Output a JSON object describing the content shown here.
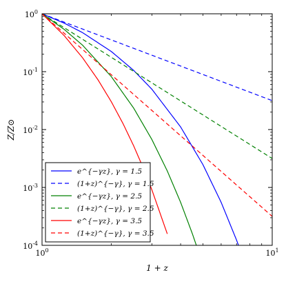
{
  "chart_data": {
    "type": "line",
    "xlabel": "1 + z",
    "ylabel": "Z/Z⊙",
    "x_scale": "log",
    "y_scale": "log",
    "xlim": [
      1,
      10
    ],
    "ylim": [
      0.0001,
      1
    ],
    "x_ticks": [
      {
        "value": 1,
        "base": "10",
        "exp": "0"
      },
      {
        "value": 10,
        "base": "10",
        "exp": "1"
      }
    ],
    "y_ticks": [
      {
        "value": 1,
        "base": "10",
        "exp": "0"
      },
      {
        "value": 0.1,
        "base": "10",
        "exp": "-1"
      },
      {
        "value": 0.01,
        "base": "10",
        "exp": "-2"
      },
      {
        "value": 0.001,
        "base": "10",
        "exp": "-3"
      },
      {
        "value": 0.0001,
        "base": "10",
        "exp": "-4"
      }
    ],
    "grid": false,
    "legend_position": "lower-left",
    "series": [
      {
        "name": "e^{−γz}, γ = 1.5",
        "color": "#0000ff",
        "dash": "solid",
        "x": [
          1,
          1.25,
          1.5,
          2,
          2.5,
          3,
          4,
          5,
          6,
          7,
          7.2
        ],
        "y": [
          1,
          0.6873,
          0.4724,
          0.2231,
          0.1054,
          0.0498,
          0.0111,
          0.00248,
          0.000553,
          0.000123,
          9.07e-05
        ]
      },
      {
        "name": "(1+z)^{−γ}, γ = 1.5",
        "color": "#0000ff",
        "dash": "dashed",
        "x": [
          1,
          2,
          4,
          10
        ],
        "y": [
          1,
          0.3536,
          0.125,
          0.03162
        ]
      },
      {
        "name": "e^{−γz}, γ = 2.5",
        "color": "#008000",
        "dash": "solid",
        "x": [
          1,
          1.25,
          1.5,
          2,
          2.5,
          3,
          3.5,
          4,
          4.5,
          4.8
        ],
        "y": [
          1,
          0.5353,
          0.2865,
          0.0821,
          0.02352,
          0.006738,
          0.00193,
          0.000553,
          0.000158,
          7.49e-05
        ]
      },
      {
        "name": "(1+z)^{−γ}, γ = 2.5",
        "color": "#008000",
        "dash": "dashed",
        "x": [
          1,
          2,
          4,
          10
        ],
        "y": [
          1,
          0.1768,
          0.03125,
          0.003162
        ]
      },
      {
        "name": "e^{−γz}, γ = 3.5",
        "color": "#ff0000",
        "dash": "solid",
        "x": [
          1,
          1.25,
          1.5,
          1.75,
          2,
          2.25,
          2.5,
          2.75,
          3,
          3.5
        ],
        "y": [
          1,
          0.4169,
          0.1738,
          0.07244,
          0.0302,
          0.01259,
          0.005248,
          0.002187,
          0.000912,
          0.000158
        ]
      },
      {
        "name": "(1+z)^{−γ}, γ = 3.5",
        "color": "#ff0000",
        "dash": "dashed",
        "x": [
          1,
          2,
          4,
          10
        ],
        "y": [
          1,
          0.08839,
          0.007813,
          0.0003162
        ]
      }
    ]
  }
}
